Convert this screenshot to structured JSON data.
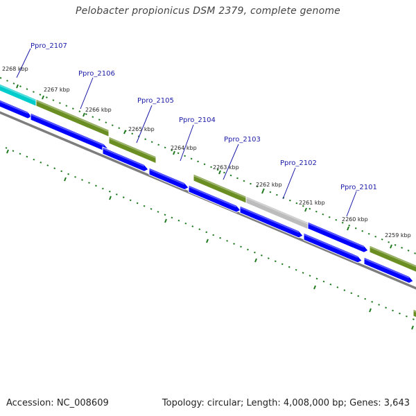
{
  "title": "Pelobacter propionicus DSM 2379, complete genome",
  "footer": {
    "accession": "Accession: NC_008609",
    "stats": "Topology: circular; Length: 4,008,000 bp; Genes: 3,643"
  },
  "colors": {
    "cds_forward": "#6b8e23",
    "cds_reverse": "#0000ff",
    "highlight_gene": "#00cccc",
    "other_feature": "#bcbcbc",
    "backbone": "#808080",
    "tick_mark": "#1f7a1f",
    "gene_label": "#1a1aa8"
  },
  "kbp_ticks": [
    "2268 kbp",
    "2267 kbp",
    "2266 kbp",
    "2265 kbp",
    "2264 kbp",
    "2263 kbp",
    "2262 kbp",
    "2261 kbp",
    "2260 kbp",
    "2259 kbp"
  ],
  "gene_labels": [
    "Ppro_2107",
    "Ppro_2106",
    "Ppro_2105",
    "Ppro_2104",
    "Ppro_2103",
    "Ppro_2102",
    "Ppro_2101"
  ]
}
